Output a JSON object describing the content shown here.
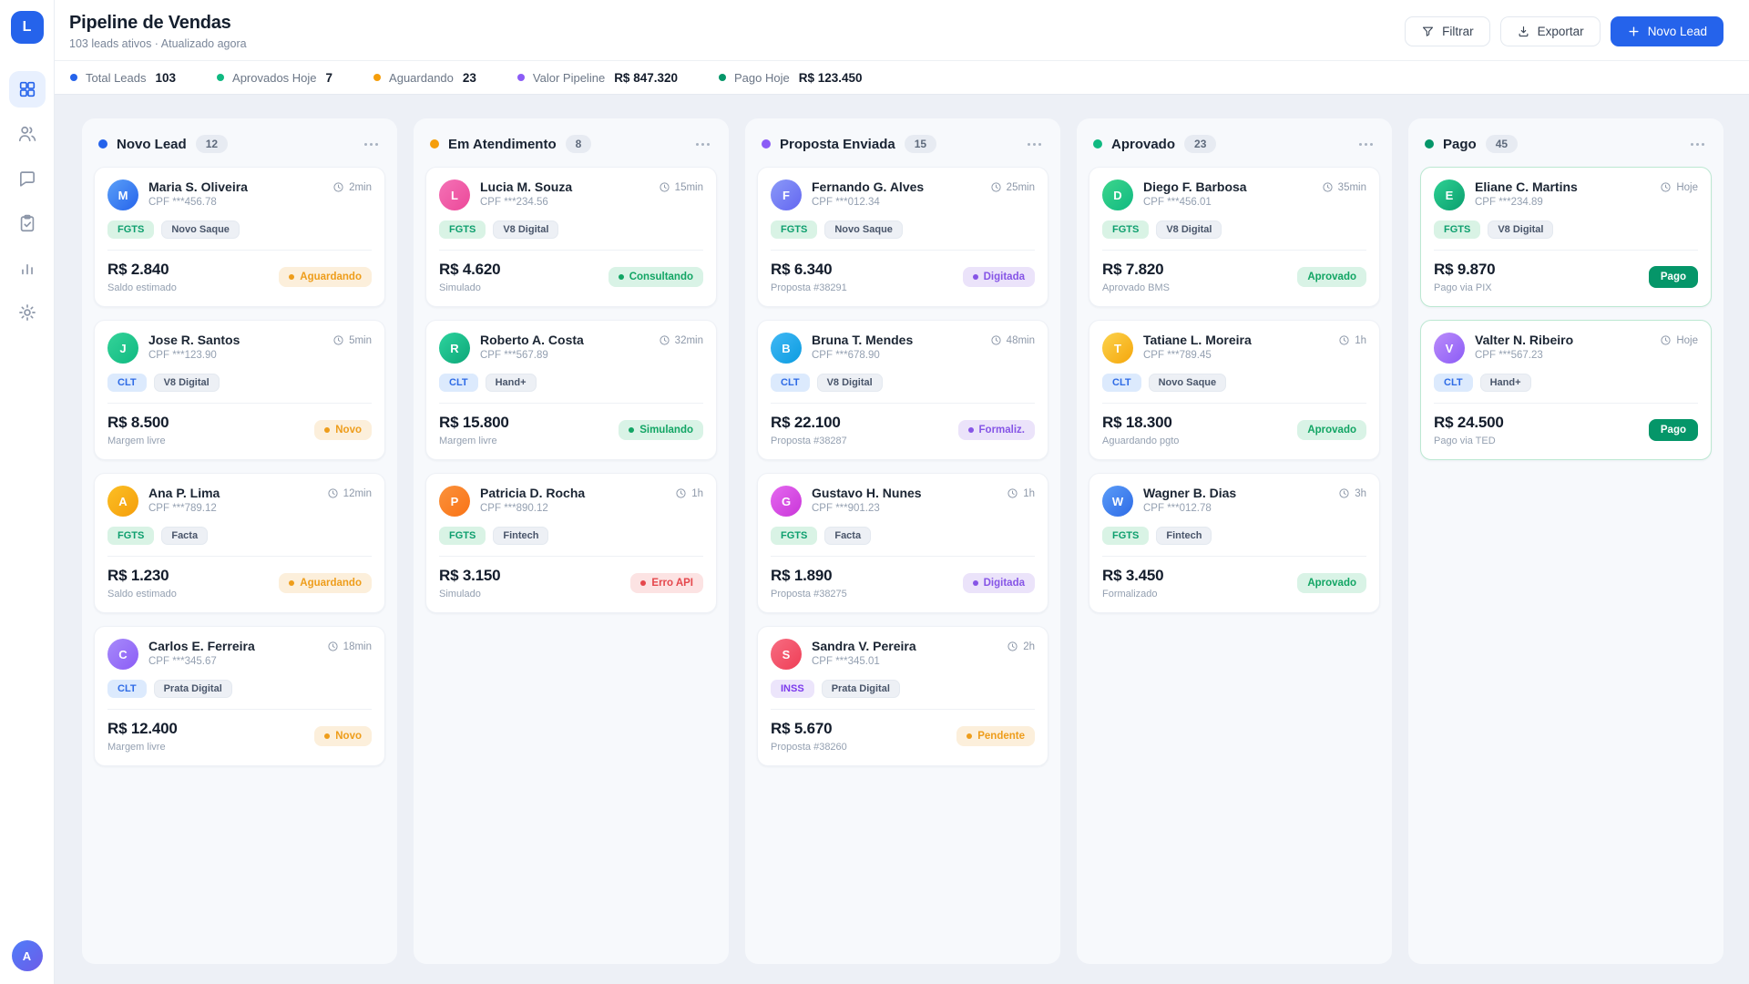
{
  "sidebar": {
    "logo_text": "L",
    "nav": [
      {
        "id": "dashboard",
        "icon": "grid-icon",
        "active": true
      },
      {
        "id": "leads",
        "icon": "users-icon",
        "active": false
      },
      {
        "id": "messages",
        "icon": "chat-icon",
        "active": false
      },
      {
        "id": "tasks",
        "icon": "clipboard-check-icon",
        "active": false
      },
      {
        "id": "reports",
        "icon": "bar-chart-icon",
        "active": false
      },
      {
        "id": "settings",
        "icon": "gear-icon",
        "active": false
      }
    ],
    "user_initial": "A"
  },
  "header": {
    "title": "Pipeline de Vendas",
    "subtitle": "103 leads ativos · Atualizado agora",
    "buttons": {
      "filter": {
        "label": "Filtrar",
        "icon": "funnel-icon"
      },
      "export": {
        "label": "Exportar",
        "icon": "download-icon"
      },
      "new_lead": {
        "label": "Novo Lead",
        "icon": "plus-icon"
      }
    }
  },
  "stats": [
    {
      "label": "Total Leads",
      "value": "103",
      "color": "#2563EB"
    },
    {
      "label": "Aprovados Hoje",
      "value": "7",
      "color": "#10B981"
    },
    {
      "label": "Aguardando",
      "value": "23",
      "color": "#F59E0B"
    },
    {
      "label": "Valor Pipeline",
      "value": "R$ 847.320",
      "color": "#8B5CF6"
    },
    {
      "label": "Pago Hoje",
      "value": "R$ 123.450",
      "color": "#059669"
    }
  ],
  "board": {
    "columns": [
      {
        "id": "novo-lead",
        "title": "Novo Lead",
        "count": "12",
        "dot_color": "#2563EB",
        "cards": [
          {
            "initial": "M",
            "avatar_from": "#5BA0F8",
            "avatar_to": "#2563EB",
            "name": "Maria S. Oliveira",
            "cpf": "CPF ***456.78",
            "time": "2min",
            "tags": [
              {
                "label": "FGTS",
                "type": "green"
              },
              {
                "label": "Novo Saque",
                "type": "neutral"
              }
            ],
            "value": "R$ 2.840",
            "value_sub": "Saldo estimado",
            "status": {
              "label": "Aguardando",
              "type": "orange",
              "dot": true
            }
          },
          {
            "initial": "J",
            "avatar_from": "#34D399",
            "avatar_to": "#10B981",
            "name": "Jose R. Santos",
            "cpf": "CPF ***123.90",
            "time": "5min",
            "tags": [
              {
                "label": "CLT",
                "type": "blue"
              },
              {
                "label": "V8 Digital",
                "type": "neutral"
              }
            ],
            "value": "R$ 8.500",
            "value_sub": "Margem livre",
            "status": {
              "label": "Novo",
              "type": "orange",
              "dot": true
            }
          },
          {
            "initial": "A",
            "avatar_from": "#FBBF24",
            "avatar_to": "#F59E0B",
            "name": "Ana P. Lima",
            "cpf": "CPF ***789.12",
            "time": "12min",
            "tags": [
              {
                "label": "FGTS",
                "type": "green"
              },
              {
                "label": "Facta",
                "type": "neutral"
              }
            ],
            "value": "R$ 1.230",
            "value_sub": "Saldo estimado",
            "status": {
              "label": "Aguardando",
              "type": "orange",
              "dot": true
            }
          },
          {
            "initial": "C",
            "avatar_from": "#A78BFA",
            "avatar_to": "#8B5CF6",
            "name": "Carlos E. Ferreira",
            "cpf": "CPF ***345.67",
            "time": "18min",
            "tags": [
              {
                "label": "CLT",
                "type": "blue"
              },
              {
                "label": "Prata Digital",
                "type": "neutral"
              }
            ],
            "value": "R$ 12.400",
            "value_sub": "Margem livre",
            "status": {
              "label": "Novo",
              "type": "orange",
              "dot": true
            }
          }
        ]
      },
      {
        "id": "em-atendimento",
        "title": "Em Atendimento",
        "count": "8",
        "dot_color": "#F59E0B",
        "cards": [
          {
            "initial": "L",
            "avatar_from": "#F472B6",
            "avatar_to": "#EC4899",
            "name": "Lucia M. Souza",
            "cpf": "CPF ***234.56",
            "time": "15min",
            "tags": [
              {
                "label": "FGTS",
                "type": "green"
              },
              {
                "label": "V8 Digital",
                "type": "neutral"
              }
            ],
            "value": "R$ 4.620",
            "value_sub": "Simulado",
            "status": {
              "label": "Consultando",
              "type": "green",
              "dot": true
            }
          },
          {
            "initial": "R",
            "avatar_from": "#2DD49E",
            "avatar_to": "#0DA678",
            "name": "Roberto A. Costa",
            "cpf": "CPF ***567.89",
            "time": "32min",
            "tags": [
              {
                "label": "CLT",
                "type": "blue"
              },
              {
                "label": "Hand+",
                "type": "neutral"
              }
            ],
            "value": "R$ 15.800",
            "value_sub": "Margem livre",
            "status": {
              "label": "Simulando",
              "type": "green",
              "dot": true
            }
          },
          {
            "initial": "P",
            "avatar_from": "#FB923C",
            "avatar_to": "#F97316",
            "name": "Patricia D. Rocha",
            "cpf": "CPF ***890.12",
            "time": "1h",
            "tags": [
              {
                "label": "FGTS",
                "type": "green"
              },
              {
                "label": "Fintech",
                "type": "neutral"
              }
            ],
            "value": "R$ 3.150",
            "value_sub": "Simulado",
            "status": {
              "label": "Erro API",
              "type": "red",
              "dot": true
            }
          }
        ]
      },
      {
        "id": "proposta-enviada",
        "title": "Proposta Enviada",
        "count": "15",
        "dot_color": "#8B5CF6",
        "cards": [
          {
            "initial": "F",
            "avatar_from": "#8B9AF8",
            "avatar_to": "#6366F1",
            "name": "Fernando G. Alves",
            "cpf": "CPF ***012.34",
            "time": "25min",
            "tags": [
              {
                "label": "FGTS",
                "type": "green"
              },
              {
                "label": "Novo Saque",
                "type": "neutral"
              }
            ],
            "value": "R$ 6.340",
            "value_sub": "Proposta #38291",
            "status": {
              "label": "Digitada",
              "type": "purple",
              "dot": true
            }
          },
          {
            "initial": "B",
            "avatar_from": "#41B8F5",
            "avatar_to": "#0C9CE0",
            "name": "Bruna T. Mendes",
            "cpf": "CPF ***678.90",
            "time": "48min",
            "tags": [
              {
                "label": "CLT",
                "type": "blue"
              },
              {
                "label": "V8 Digital",
                "type": "neutral"
              }
            ],
            "value": "R$ 22.100",
            "value_sub": "Proposta #38287",
            "status": {
              "label": "Formaliz.",
              "type": "purple",
              "dot": true
            }
          },
          {
            "initial": "G",
            "avatar_from": "#E569F0",
            "avatar_to": "#C936D8",
            "name": "Gustavo H. Nunes",
            "cpf": "CPF ***901.23",
            "time": "1h",
            "tags": [
              {
                "label": "FGTS",
                "type": "green"
              },
              {
                "label": "Facta",
                "type": "neutral"
              }
            ],
            "value": "R$ 1.890",
            "value_sub": "Proposta #38275",
            "status": {
              "label": "Digitada",
              "type": "purple",
              "dot": true
            }
          },
          {
            "initial": "S",
            "avatar_from": "#F76D82",
            "avatar_to": "#EF3E56",
            "name": "Sandra V. Pereira",
            "cpf": "CPF ***345.01",
            "time": "2h",
            "tags": [
              {
                "label": "INSS",
                "type": "purple"
              },
              {
                "label": "Prata Digital",
                "type": "neutral"
              }
            ],
            "value": "R$ 5.670",
            "value_sub": "Proposta #38260",
            "status": {
              "label": "Pendente",
              "type": "orange",
              "dot": true
            }
          }
        ]
      },
      {
        "id": "aprovado",
        "title": "Aprovado",
        "count": "23",
        "dot_color": "#10B981",
        "cards": [
          {
            "initial": "D",
            "avatar_from": "#3DD68C",
            "avatar_to": "#10B981",
            "name": "Diego F. Barbosa",
            "cpf": "CPF ***456.01",
            "time": "35min",
            "tags": [
              {
                "label": "FGTS",
                "type": "green"
              },
              {
                "label": "V8 Digital",
                "type": "neutral"
              }
            ],
            "value": "R$ 7.820",
            "value_sub": "Aprovado BMS",
            "status": {
              "label": "Aprovado",
              "type": "green",
              "dot": false
            }
          },
          {
            "initial": "T",
            "avatar_from": "#FCD34D",
            "avatar_to": "#F5A60B",
            "name": "Tatiane L. Moreira",
            "cpf": "CPF ***789.45",
            "time": "1h",
            "tags": [
              {
                "label": "CLT",
                "type": "blue"
              },
              {
                "label": "Novo Saque",
                "type": "neutral"
              }
            ],
            "value": "R$ 18.300",
            "value_sub": "Aguardando pgto",
            "status": {
              "label": "Aprovado",
              "type": "green",
              "dot": false
            }
          },
          {
            "initial": "W",
            "avatar_from": "#5B9CF8",
            "avatar_to": "#2E6BE6",
            "name": "Wagner B. Dias",
            "cpf": "CPF ***012.78",
            "time": "3h",
            "tags": [
              {
                "label": "FGTS",
                "type": "green"
              },
              {
                "label": "Fintech",
                "type": "neutral"
              }
            ],
            "value": "R$ 3.450",
            "value_sub": "Formalizado",
            "status": {
              "label": "Aprovado",
              "type": "green",
              "dot": false
            }
          }
        ]
      },
      {
        "id": "pago",
        "title": "Pago",
        "count": "45",
        "dot_color": "#059669",
        "cards": [
          {
            "initial": "E",
            "avatar_from": "#2ED193",
            "avatar_to": "#0A9E6E",
            "name": "Eliane C. Martins",
            "cpf": "CPF ***234.89",
            "time": "Hoje",
            "card_style": "paid",
            "tags": [
              {
                "label": "FGTS",
                "type": "green"
              },
              {
                "label": "V8 Digital",
                "type": "neutral"
              }
            ],
            "value": "R$ 9.870",
            "value_sub": "Pago via PIX",
            "status": {
              "label": "Pago",
              "type": "solid",
              "dot": false
            }
          },
          {
            "initial": "V",
            "avatar_from": "#BB8CFA",
            "avatar_to": "#8B5CF6",
            "name": "Valter N. Ribeiro",
            "cpf": "CPF ***567.23",
            "time": "Hoje",
            "card_style": "paid",
            "tags": [
              {
                "label": "CLT",
                "type": "blue"
              },
              {
                "label": "Hand+",
                "type": "neutral"
              }
            ],
            "value": "R$ 24.500",
            "value_sub": "Pago via TED",
            "status": {
              "label": "Pago",
              "type": "solid",
              "dot": false
            }
          }
        ]
      }
    ]
  }
}
